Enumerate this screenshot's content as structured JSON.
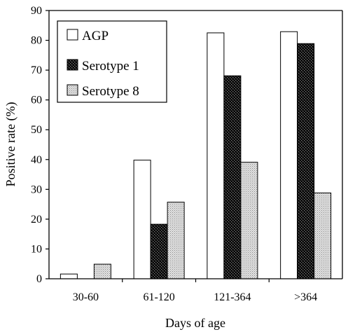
{
  "chart_data": {
    "type": "bar",
    "title": "",
    "xlabel": "Days of age",
    "ylabel": "Positive rate (%)",
    "ylim": [
      0,
      90
    ],
    "yticks": [
      0,
      10,
      20,
      30,
      40,
      50,
      60,
      70,
      80,
      90
    ],
    "categories": [
      "30-60",
      "61-120",
      "121-364",
      ">364"
    ],
    "series": [
      {
        "name": "AGP",
        "pattern": "plain",
        "values": [
          1.6,
          39.8,
          82.5,
          82.9
        ]
      },
      {
        "name": "Serotype 1",
        "pattern": "dark-checker",
        "values": [
          0,
          18.3,
          68.1,
          78.9
        ]
      },
      {
        "name": "Serotype 8",
        "pattern": "light-dots",
        "values": [
          4.9,
          25.7,
          39.1,
          28.8
        ]
      }
    ],
    "legend": {
      "placement": "top-left"
    },
    "grid": false,
    "colors": {
      "axis": "#000000",
      "bar_fill": "#ffffff",
      "dark_fill": "#1a1a1a",
      "light_fill": "#c8c8c8"
    }
  }
}
